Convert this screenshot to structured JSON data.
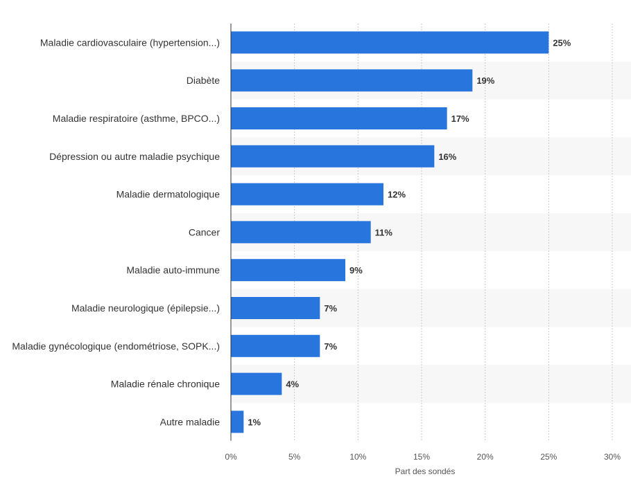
{
  "chart_data": {
    "type": "bar",
    "orientation": "horizontal",
    "categories": [
      "Maladie cardiovasculaire (hypertension...)",
      "Diabète",
      "Maladie respiratoire (asthme, BPCO...)",
      "Dépression ou autre maladie psychique",
      "Maladie dermatologique",
      "Cancer",
      "Maladie auto-immune",
      "Maladie neurologique (épilepsie...)",
      "Maladie gynécologique (endométriose, SOPK...)",
      "Maladie rénale chronique",
      "Autre maladie"
    ],
    "values": [
      25,
      19,
      17,
      16,
      12,
      11,
      9,
      7,
      7,
      4,
      1
    ],
    "value_labels": [
      "25%",
      "19%",
      "17%",
      "16%",
      "12%",
      "11%",
      "9%",
      "7%",
      "7%",
      "4%",
      "1%"
    ],
    "xlabel": "Part des sondés",
    "ylabel": "",
    "xlim": [
      0,
      30
    ],
    "xticks": [
      0,
      5,
      10,
      15,
      20,
      25,
      30
    ],
    "xtick_labels": [
      "0%",
      "5%",
      "10%",
      "15%",
      "20%",
      "25%",
      "30%"
    ],
    "grid": "vertical-dotted",
    "bar_color": "#2876dd",
    "band_color": "#f7f7f7"
  }
}
